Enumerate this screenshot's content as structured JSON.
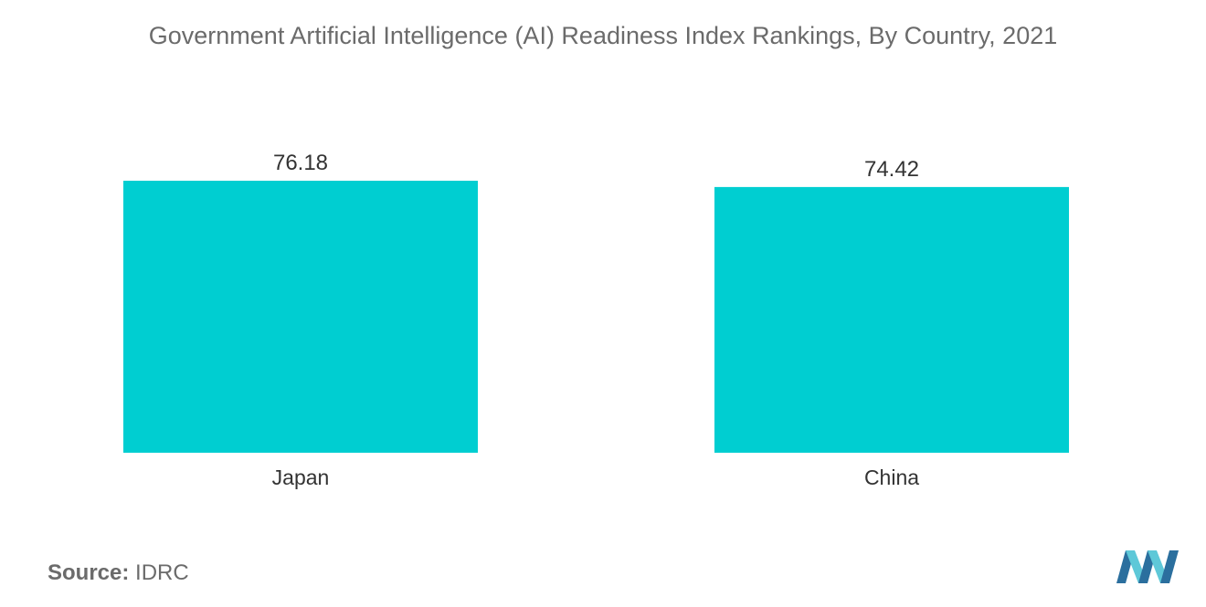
{
  "title": "Government Artificial Intelligence (AI) Readiness Index Rankings, By Country, 2021",
  "chart_data": {
    "type": "bar",
    "categories": [
      "Japan",
      "China"
    ],
    "values": [
      76.18,
      74.42
    ],
    "title": "Government Artificial Intelligence (AI) Readiness Index Rankings, By Country, 2021",
    "xlabel": "",
    "ylabel": "",
    "ylim": [
      0,
      76.18
    ],
    "grid": false,
    "bar_color": "#00ced1"
  },
  "source": {
    "label": "Source:",
    "value": "IDRC"
  },
  "logo": {
    "icon": "mordor-intelligence-logo-icon",
    "colors": [
      "#2b6f9e",
      "#5ec8d8"
    ]
  }
}
